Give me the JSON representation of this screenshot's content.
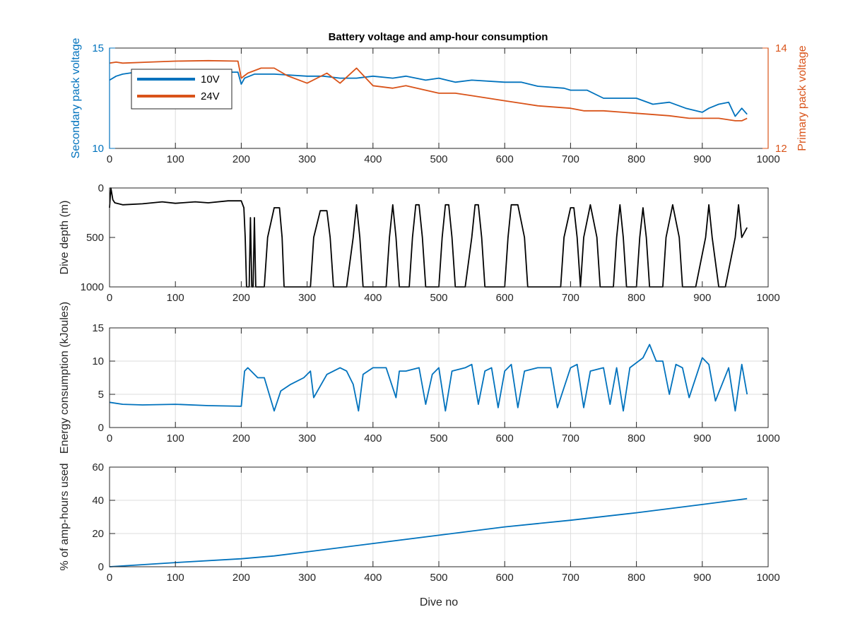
{
  "figure": {
    "title": "Battery voltage and amp-hour consumption"
  },
  "colors": {
    "blue": "#0072BD",
    "orange": "#D95319",
    "black": "#000000",
    "grid": "#dcdcdc",
    "axis": "#262626"
  },
  "chart_data": [
    {
      "type": "line",
      "title": "Battery voltage and amp-hour consumption",
      "xlabel": "",
      "ylabel": "Secondary pack voltage",
      "ylabel_right": "Primary pack voltage",
      "xlim": [
        0,
        1000
      ],
      "ylim": [
        10,
        15
      ],
      "ylim_right": [
        12,
        14
      ],
      "xticks": [
        0,
        100,
        200,
        300,
        400,
        500,
        600,
        700,
        800,
        900,
        1000
      ],
      "yticks": [
        10,
        15
      ],
      "yticks_right": [
        12,
        14
      ],
      "grid": true,
      "legend": "top-left",
      "series": [
        {
          "name": "10V",
          "axis": "left",
          "color": "#0072BD",
          "x": [
            0,
            10,
            20,
            40,
            60,
            100,
            150,
            195,
            200,
            205,
            220,
            250,
            300,
            325,
            350,
            375,
            400,
            430,
            450,
            480,
            500,
            525,
            550,
            600,
            625,
            650,
            690,
            700,
            725,
            750,
            800,
            825,
            850,
            875,
            900,
            910,
            925,
            940,
            950,
            960,
            968
          ],
          "values": [
            13.4,
            13.6,
            13.7,
            13.8,
            13.8,
            13.8,
            13.8,
            13.8,
            13.2,
            13.5,
            13.7,
            13.7,
            13.6,
            13.6,
            13.5,
            13.5,
            13.6,
            13.5,
            13.6,
            13.4,
            13.5,
            13.3,
            13.4,
            13.3,
            13.3,
            13.1,
            13.0,
            12.9,
            12.9,
            12.5,
            12.5,
            12.2,
            12.3,
            12.0,
            11.8,
            12.0,
            12.2,
            12.3,
            11.6,
            12.0,
            11.7
          ]
        },
        {
          "name": "24V",
          "axis": "right",
          "color": "#D95319",
          "x": [
            0,
            10,
            20,
            60,
            100,
            150,
            195,
            200,
            210,
            230,
            250,
            270,
            300,
            330,
            350,
            375,
            400,
            430,
            450,
            500,
            525,
            550,
            600,
            625,
            650,
            700,
            720,
            750,
            800,
            850,
            880,
            900,
            925,
            950,
            960,
            968
          ],
          "values": [
            13.7,
            13.72,
            13.7,
            13.72,
            13.74,
            13.75,
            13.74,
            13.4,
            13.5,
            13.6,
            13.6,
            13.45,
            13.3,
            13.5,
            13.3,
            13.6,
            13.25,
            13.2,
            13.25,
            13.1,
            13.1,
            13.05,
            12.95,
            12.9,
            12.85,
            12.8,
            12.75,
            12.75,
            12.7,
            12.65,
            12.6,
            12.6,
            12.6,
            12.55,
            12.55,
            12.6
          ]
        }
      ]
    },
    {
      "type": "line",
      "title": "",
      "xlabel": "",
      "ylabel": "Dive depth (m)",
      "xlim": [
        0,
        1000
      ],
      "ylim": [
        1000,
        0
      ],
      "reversed_y": true,
      "xticks": [
        0,
        100,
        200,
        300,
        400,
        500,
        600,
        700,
        800,
        900,
        1000
      ],
      "yticks": [
        0,
        500,
        1000
      ],
      "grid": false,
      "series": [
        {
          "color": "#000000",
          "x": [
            0,
            2,
            5,
            8,
            20,
            50,
            80,
            100,
            130,
            150,
            180,
            200,
            204,
            206,
            208,
            210,
            212,
            214,
            216,
            218,
            220,
            222,
            224,
            226,
            228,
            235,
            240,
            250,
            258,
            262,
            265,
            275,
            300,
            305,
            310,
            320,
            330,
            335,
            340,
            360,
            370,
            375,
            380,
            385,
            400,
            420,
            425,
            430,
            435,
            440,
            455,
            460,
            465,
            470,
            475,
            480,
            490,
            500,
            505,
            510,
            515,
            520,
            525,
            530,
            540,
            550,
            555,
            560,
            565,
            570,
            600,
            605,
            610,
            620,
            630,
            635,
            640,
            680,
            685,
            690,
            700,
            705,
            710,
            715,
            720,
            730,
            740,
            745,
            750,
            765,
            770,
            775,
            780,
            785,
            800,
            805,
            810,
            815,
            820,
            840,
            845,
            855,
            865,
            870,
            880,
            890,
            905,
            910,
            915,
            925,
            935,
            950,
            955,
            960,
            968
          ],
          "values": [
            200,
            0,
            120,
            150,
            170,
            160,
            140,
            155,
            140,
            150,
            130,
            130,
            200,
            500,
            1000,
            1000,
            1000,
            300,
            1000,
            1000,
            300,
            1000,
            1000,
            1000,
            1000,
            1000,
            500,
            200,
            200,
            500,
            1000,
            1000,
            1000,
            1000,
            500,
            230,
            230,
            500,
            1000,
            1000,
            500,
            170,
            500,
            1000,
            1000,
            1000,
            500,
            170,
            500,
            1000,
            1000,
            500,
            170,
            170,
            500,
            1000,
            1000,
            1000,
            500,
            170,
            170,
            500,
            1000,
            1000,
            1000,
            500,
            170,
            170,
            500,
            1000,
            1000,
            500,
            170,
            170,
            500,
            1000,
            1000,
            1000,
            1000,
            500,
            200,
            200,
            500,
            1000,
            500,
            170,
            500,
            1000,
            1000,
            1000,
            500,
            170,
            500,
            1000,
            1000,
            500,
            200,
            500,
            1000,
            1000,
            500,
            170,
            500,
            1000,
            1000,
            1000,
            500,
            170,
            500,
            1000,
            1000,
            500,
            170,
            500,
            400
          ]
        }
      ]
    },
    {
      "type": "line",
      "title": "",
      "xlabel": "",
      "ylabel": "Energy consumption (kJoules)",
      "xlim": [
        0,
        1000
      ],
      "ylim": [
        0,
        15
      ],
      "xticks": [
        0,
        100,
        200,
        300,
        400,
        500,
        600,
        700,
        800,
        900,
        1000
      ],
      "yticks": [
        0,
        5,
        10,
        15
      ],
      "grid": true,
      "series": [
        {
          "color": "#0072BD",
          "x": [
            0,
            20,
            50,
            100,
            150,
            200,
            205,
            210,
            225,
            235,
            250,
            260,
            275,
            295,
            305,
            310,
            330,
            350,
            360,
            370,
            378,
            385,
            400,
            420,
            435,
            440,
            450,
            470,
            480,
            490,
            500,
            510,
            520,
            540,
            550,
            560,
            570,
            580,
            590,
            600,
            610,
            620,
            630,
            650,
            670,
            680,
            700,
            710,
            720,
            730,
            750,
            760,
            770,
            780,
            790,
            810,
            820,
            830,
            840,
            850,
            860,
            870,
            880,
            900,
            910,
            920,
            940,
            950,
            960,
            968
          ],
          "values": [
            3.8,
            3.5,
            3.4,
            3.5,
            3.3,
            3.2,
            8.5,
            9.0,
            7.5,
            7.5,
            2.5,
            5.5,
            6.5,
            7.5,
            8.5,
            4.5,
            8.0,
            9.0,
            8.5,
            6.5,
            2.5,
            8.0,
            9.0,
            9.0,
            4.5,
            8.5,
            8.5,
            9.0,
            3.5,
            8.0,
            9.0,
            2.5,
            8.5,
            9.0,
            9.5,
            3.5,
            8.5,
            9.0,
            3.0,
            8.5,
            9.5,
            3.0,
            8.5,
            9.0,
            9.0,
            3.0,
            9.0,
            9.5,
            3.0,
            8.5,
            9.0,
            3.5,
            9.0,
            2.5,
            9.0,
            10.5,
            12.5,
            10.0,
            10.0,
            5.0,
            9.5,
            9.0,
            4.5,
            10.5,
            9.5,
            4.0,
            9.0,
            2.5,
            9.5,
            5.0
          ]
        }
      ]
    },
    {
      "type": "line",
      "title": "",
      "xlabel": "Dive no",
      "ylabel": "% of amp-hours used",
      "xlim": [
        0,
        1000
      ],
      "ylim": [
        0,
        60
      ],
      "xticks": [
        0,
        100,
        200,
        300,
        400,
        500,
        600,
        700,
        800,
        900,
        1000
      ],
      "yticks": [
        0,
        20,
        40,
        60
      ],
      "grid": true,
      "series": [
        {
          "color": "#0072BD",
          "x": [
            0,
            100,
            200,
            250,
            300,
            400,
            500,
            600,
            700,
            800,
            900,
            968
          ],
          "values": [
            0,
            2.5,
            4.8,
            6.5,
            9.0,
            14.0,
            19.0,
            24.0,
            28.0,
            32.5,
            37.5,
            41.0
          ]
        }
      ]
    }
  ]
}
